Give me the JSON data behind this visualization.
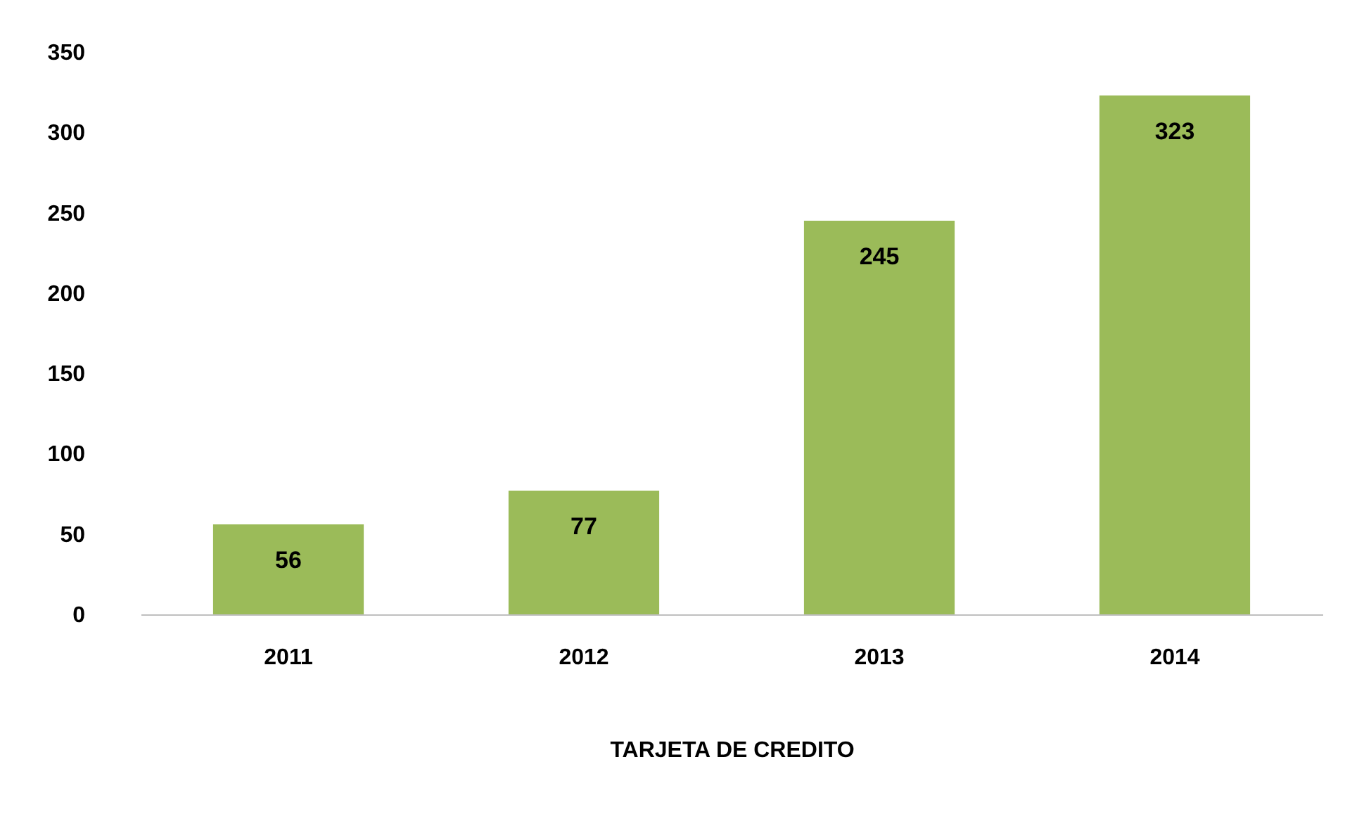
{
  "chart_data": {
    "type": "bar",
    "xlabel": "TARJETA DE CREDITO",
    "categories": [
      "2011",
      "2012",
      "2013",
      "2014"
    ],
    "values": [
      56,
      77,
      245,
      323
    ],
    "color": "#9bbb59",
    "ylim": [
      0,
      350
    ],
    "yticks": [
      0,
      50,
      100,
      150,
      200,
      250,
      300,
      350
    ],
    "grid": false,
    "data_labels": true
  }
}
